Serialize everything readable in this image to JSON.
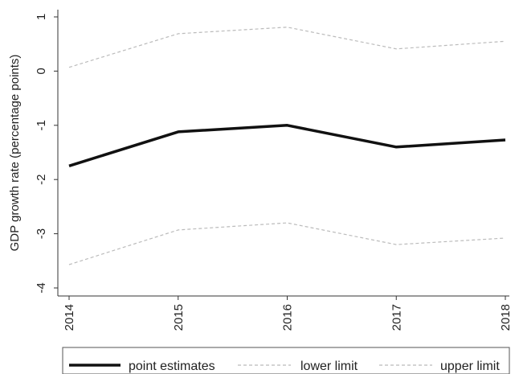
{
  "chart_data": {
    "type": "line",
    "xlabel": "",
    "ylabel": "GDP growth rate (percentage points)",
    "x": [
      "2014",
      "2015",
      "2016",
      "2017",
      "2018"
    ],
    "y_ticks": [
      "1",
      "0",
      "-1",
      "-2",
      "-3",
      "-4"
    ],
    "ylim": [
      -4,
      1
    ],
    "grid": false,
    "legend_position": "bottom",
    "series": [
      {
        "name": "point estimates",
        "values": [
          -1.75,
          -1.12,
          -1.0,
          -1.4,
          -1.27
        ],
        "color": "#111111",
        "style": "solid"
      },
      {
        "name": "lower limit",
        "values": [
          -3.57,
          -2.93,
          -2.8,
          -3.2,
          -3.08
        ],
        "color": "#bbbbbb",
        "style": "dashed"
      },
      {
        "name": "upper limit",
        "values": [
          0.07,
          0.69,
          0.81,
          0.41,
          0.55
        ],
        "color": "#bbbbbb",
        "style": "dashed"
      }
    ]
  }
}
